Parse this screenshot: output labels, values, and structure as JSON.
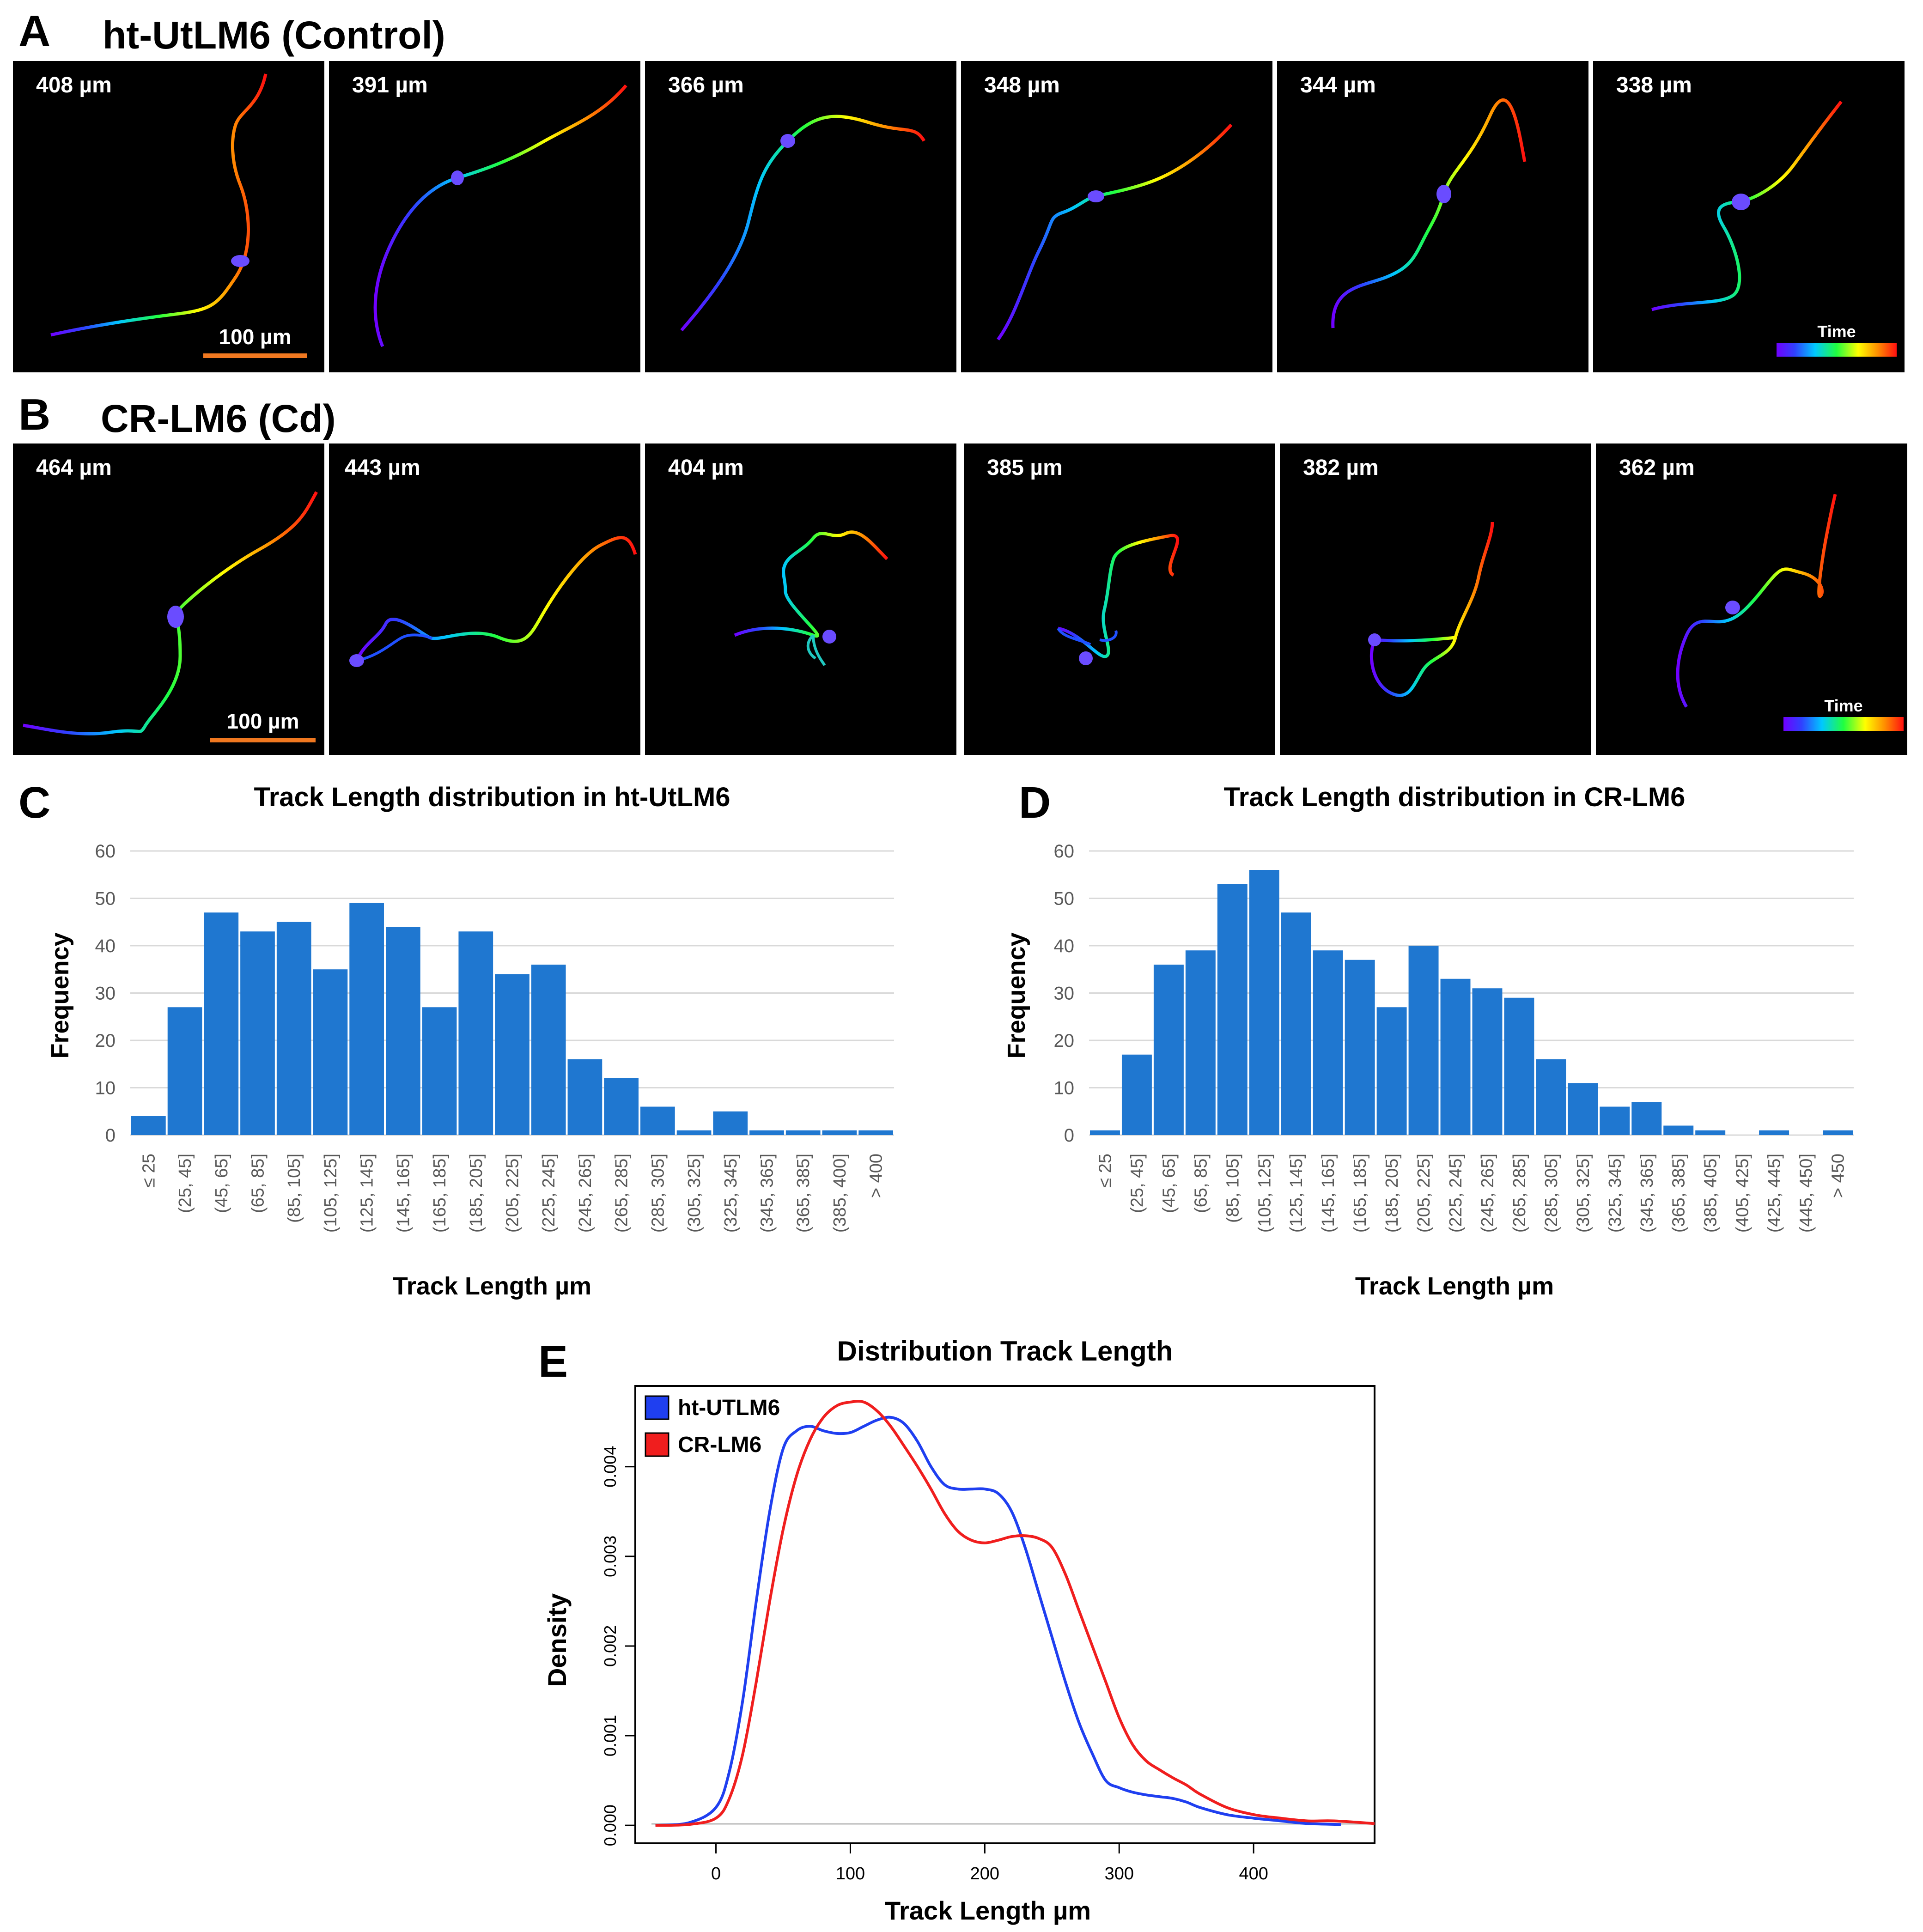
{
  "panels": {
    "A": {
      "letter": "A",
      "title": "ht-UtLM6 (Control)",
      "tracks": [
        "408 µm",
        "391 µm",
        "366 µm",
        "348 µm",
        "344 µm",
        "338 µm"
      ],
      "scale_bar": "100 µm",
      "time_label": "Time"
    },
    "B": {
      "letter": "B",
      "title": "CR-LM6  (Cd)",
      "tracks": [
        "464 µm",
        "443 µm",
        "404 µm",
        "385 µm",
        "382 µm",
        "362 µm"
      ],
      "scale_bar": "100 µm",
      "time_label": "Time"
    }
  },
  "colors": {
    "bar": "#1f77d0",
    "ht": "#1f3ff0",
    "cr": "#f01e1e",
    "scale": "#f07820"
  },
  "chart_data": [
    {
      "id": "C",
      "type": "bar",
      "letter": "C",
      "title": "Track Length distribution in ht-UtLM6",
      "xlabel": "Track Length µm",
      "ylabel": "Frequency",
      "categories": [
        "≤ 25",
        "(25, 45]",
        "(45, 65]",
        "(65, 85]",
        "(85, 105]",
        "(105, 125]",
        "(125, 145]",
        "(145, 165]",
        "(165, 185]",
        "(185, 205]",
        "(205, 225]",
        "(225, 245]",
        "(245, 265]",
        "(265, 285]",
        "(285, 305]",
        "(305, 325]",
        "(325, 345]",
        "(345, 365]",
        "(365, 385]",
        "(385, 400]",
        "> 400"
      ],
      "values": [
        4,
        27,
        47,
        43,
        45,
        35,
        49,
        44,
        27,
        43,
        34,
        36,
        16,
        12,
        6,
        1,
        5,
        1,
        1,
        1,
        1
      ],
      "yticks": [
        "0",
        "10",
        "20",
        "30",
        "40",
        "50",
        "60"
      ],
      "ylim": [
        0,
        60
      ],
      "grid": true
    },
    {
      "id": "D",
      "type": "bar",
      "letter": "D",
      "title": "Track Length distribution in CR-LM6",
      "xlabel": "Track Length µm",
      "ylabel": "Frequency",
      "categories": [
        "≤ 25",
        "(25, 45]",
        "(45, 65]",
        "(65, 85]",
        "(85, 105]",
        "(105, 125]",
        "(125, 145]",
        "(145, 165]",
        "(165, 185]",
        "(185, 205]",
        "(205, 225]",
        "(225, 245]",
        "(245, 265]",
        "(265, 285]",
        "(285, 305]",
        "(305, 325]",
        "(325, 345]",
        "(345, 365]",
        "(365, 385]",
        "(385, 405]",
        "(405, 425]",
        "(425, 445]",
        "(445, 450]",
        "> 450"
      ],
      "values": [
        1,
        17,
        36,
        39,
        53,
        56,
        47,
        39,
        37,
        27,
        40,
        33,
        31,
        29,
        16,
        11,
        6,
        7,
        2,
        1,
        0,
        1,
        0,
        1
      ],
      "yticks": [
        "0",
        "10",
        "20",
        "30",
        "40",
        "50",
        "60"
      ],
      "ylim": [
        0,
        60
      ],
      "grid": true
    },
    {
      "id": "E",
      "type": "line",
      "letter": "E",
      "title": "Distribution Track Length",
      "xlabel": "Track Length µm",
      "ylabel": "Density",
      "xlim": [
        -60,
        490
      ],
      "ylim": [
        -0.0002,
        0.0049
      ],
      "xticks": [
        "0",
        "100",
        "200",
        "300",
        "400"
      ],
      "yticks": [
        "0.000",
        "0.001",
        "0.002",
        "0.003",
        "0.004"
      ],
      "legend": "top-left",
      "series": [
        {
          "name": "ht-UTLM6",
          "color": "#1f3ff0",
          "x": [
            -45,
            -20,
            0,
            10,
            20,
            30,
            40,
            50,
            60,
            70,
            80,
            90,
            100,
            110,
            120,
            130,
            140,
            150,
            160,
            170,
            180,
            190,
            200,
            210,
            220,
            230,
            240,
            250,
            260,
            270,
            280,
            290,
            300,
            310,
            320,
            330,
            340,
            350,
            360,
            380,
            400,
            420,
            440,
            465
          ],
          "y": [
            0.0,
            3e-05,
            0.0002,
            0.0006,
            0.0014,
            0.0025,
            0.0035,
            0.0042,
            0.0044,
            0.00445,
            0.0044,
            0.00437,
            0.00438,
            0.00445,
            0.00452,
            0.00455,
            0.00448,
            0.00428,
            0.004,
            0.0038,
            0.00375,
            0.00375,
            0.00375,
            0.0037,
            0.0035,
            0.0031,
            0.0026,
            0.0021,
            0.0016,
            0.00115,
            0.0008,
            0.0005,
            0.00042,
            0.00037,
            0.00034,
            0.00032,
            0.0003,
            0.00026,
            0.0002,
            0.00012,
            8e-05,
            5e-05,
            2e-05,
            1e-05
          ]
        },
        {
          "name": "CR-LM6",
          "color": "#f01e1e",
          "x": [
            -45,
            -20,
            0,
            10,
            20,
            30,
            40,
            50,
            60,
            70,
            80,
            90,
            100,
            110,
            120,
            130,
            140,
            150,
            160,
            170,
            180,
            190,
            200,
            210,
            220,
            230,
            240,
            250,
            260,
            270,
            280,
            290,
            300,
            310,
            320,
            330,
            340,
            350,
            360,
            380,
            400,
            420,
            440,
            460,
            490
          ],
          "y": [
            0.0,
            1e-05,
            8e-05,
            0.0003,
            0.0008,
            0.0016,
            0.0025,
            0.0033,
            0.0039,
            0.0043,
            0.00455,
            0.00468,
            0.00472,
            0.00472,
            0.00462,
            0.00445,
            0.00423,
            0.004,
            0.00375,
            0.00348,
            0.00328,
            0.00318,
            0.00315,
            0.00318,
            0.00322,
            0.00323,
            0.0032,
            0.0031,
            0.0028,
            0.0024,
            0.002,
            0.0016,
            0.0012,
            0.0009,
            0.00072,
            0.00062,
            0.00053,
            0.00045,
            0.00035,
            0.0002,
            0.00012,
            8e-05,
            5e-05,
            5e-05,
            2e-05
          ]
        }
      ]
    }
  ]
}
